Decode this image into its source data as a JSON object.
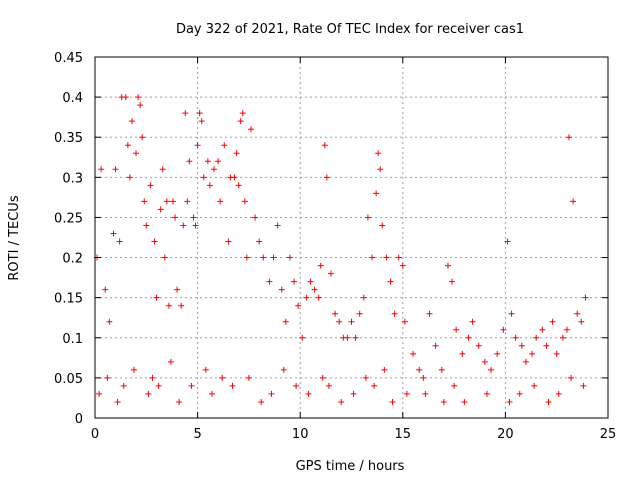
{
  "chart_data": {
    "type": "scatter",
    "title": "Day 322 of 2021, Rate Of TEC Index for receiver cas1",
    "xlabel": "GPS time / hours",
    "ylabel": "ROTI / TECUs",
    "xlim": [
      0,
      25
    ],
    "ylim": [
      0,
      0.45
    ],
    "xticks": [
      0,
      5,
      10,
      15,
      20,
      25
    ],
    "yticks": [
      0,
      0.05,
      0.1,
      0.15,
      0.2,
      0.25,
      0.3,
      0.35,
      0.4,
      0.45
    ],
    "xtick_labels": [
      "0",
      "5",
      "10",
      "15",
      "20",
      "25"
    ],
    "ytick_labels": [
      "0",
      "0.05",
      "0.1",
      "0.15",
      "0.2",
      "0.25",
      "0.3",
      "0.35",
      "0.4",
      "0.45"
    ],
    "grid": true,
    "marker": "plus",
    "color": "#ff0000",
    "x": [
      0.1,
      0.3,
      0.5,
      0.7,
      0.9,
      1.0,
      1.2,
      1.3,
      1.5,
      1.6,
      1.7,
      1.8,
      2.0,
      2.1,
      2.2,
      2.3,
      2.4,
      2.5,
      2.7,
      2.9,
      3.0,
      3.2,
      3.3,
      3.4,
      3.5,
      3.6,
      3.8,
      3.9,
      4.0,
      4.2,
      4.3,
      4.4,
      4.5,
      4.6,
      4.8,
      4.9,
      5.0,
      5.1,
      5.2,
      5.3,
      5.5,
      5.6,
      5.8,
      6.0,
      6.1,
      6.3,
      6.5,
      6.6,
      6.8,
      6.9,
      7.0,
      7.1,
      7.2,
      7.3,
      7.4,
      7.6,
      7.8,
      8.0,
      8.2,
      8.5,
      8.7,
      8.9,
      9.1,
      9.3,
      9.5,
      9.7,
      9.9,
      10.1,
      10.3,
      10.5,
      10.7,
      10.9,
      11.0,
      11.2,
      11.3,
      11.5,
      11.7,
      11.9,
      12.1,
      12.3,
      12.5,
      12.7,
      12.9,
      13.1,
      13.3,
      13.5,
      13.7,
      13.8,
      13.9,
      14.0,
      14.2,
      14.4,
      14.6,
      14.8,
      15.0,
      15.1,
      15.5,
      15.8,
      16.0,
      16.3,
      16.6,
      16.9,
      17.2,
      17.4,
      17.6,
      17.9,
      18.2,
      18.4,
      18.7,
      19.0,
      19.3,
      19.6,
      19.9,
      20.1,
      20.3,
      20.5,
      20.8,
      21.0,
      21.3,
      21.5,
      21.8,
      22.0,
      22.3,
      22.5,
      22.8,
      23.0,
      23.1,
      23.3,
      23.5,
      23.7,
      23.9,
      0.2,
      0.6,
      1.1,
      1.4,
      1.9,
      2.6,
      2.8,
      3.1,
      3.7,
      4.1,
      4.7,
      5.4,
      5.7,
      6.2,
      6.7,
      7.5,
      8.1,
      8.6,
      9.2,
      9.8,
      10.4,
      11.1,
      11.4,
      12.0,
      12.6,
      13.2,
      13.6,
      14.1,
      14.5,
      15.2,
      16.1,
      17.0,
      17.5,
      18.0,
      19.1,
      20.2,
      20.7,
      21.4,
      22.1,
      22.6,
      23.2,
      23.8
    ],
    "y": [
      0.2,
      0.31,
      0.16,
      0.12,
      0.23,
      0.31,
      0.22,
      0.4,
      0.4,
      0.34,
      0.3,
      0.37,
      0.33,
      0.4,
      0.39,
      0.35,
      0.27,
      0.24,
      0.29,
      0.22,
      0.15,
      0.26,
      0.31,
      0.2,
      0.27,
      0.14,
      0.27,
      0.25,
      0.16,
      0.14,
      0.24,
      0.38,
      0.27,
      0.32,
      0.25,
      0.24,
      0.34,
      0.38,
      0.37,
      0.3,
      0.32,
      0.29,
      0.31,
      0.32,
      0.27,
      0.34,
      0.22,
      0.3,
      0.3,
      0.33,
      0.29,
      0.37,
      0.38,
      0.27,
      0.2,
      0.36,
      0.25,
      0.22,
      0.2,
      0.17,
      0.2,
      0.24,
      0.16,
      0.12,
      0.2,
      0.17,
      0.14,
      0.1,
      0.15,
      0.17,
      0.16,
      0.15,
      0.19,
      0.34,
      0.3,
      0.18,
      0.13,
      0.12,
      0.1,
      0.1,
      0.12,
      0.1,
      0.13,
      0.15,
      0.25,
      0.2,
      0.28,
      0.33,
      0.31,
      0.24,
      0.2,
      0.17,
      0.13,
      0.2,
      0.19,
      0.12,
      0.08,
      0.06,
      0.05,
      0.13,
      0.09,
      0.06,
      0.19,
      0.17,
      0.11,
      0.08,
      0.1,
      0.12,
      0.09,
      0.07,
      0.06,
      0.08,
      0.11,
      0.22,
      0.13,
      0.1,
      0.09,
      0.07,
      0.08,
      0.1,
      0.11,
      0.09,
      0.12,
      0.08,
      0.1,
      0.11,
      0.35,
      0.27,
      0.13,
      0.12,
      0.15,
      0.03,
      0.05,
      0.02,
      0.04,
      0.06,
      0.03,
      0.05,
      0.04,
      0.07,
      0.02,
      0.04,
      0.06,
      0.03,
      0.05,
      0.04,
      0.05,
      0.02,
      0.03,
      0.06,
      0.04,
      0.03,
      0.05,
      0.04,
      0.02,
      0.03,
      0.05,
      0.04,
      0.06,
      0.02,
      0.03,
      0.03,
      0.02,
      0.04,
      0.02,
      0.03,
      0.02,
      0.03,
      0.04,
      0.02,
      0.03,
      0.05,
      0.04
    ]
  }
}
